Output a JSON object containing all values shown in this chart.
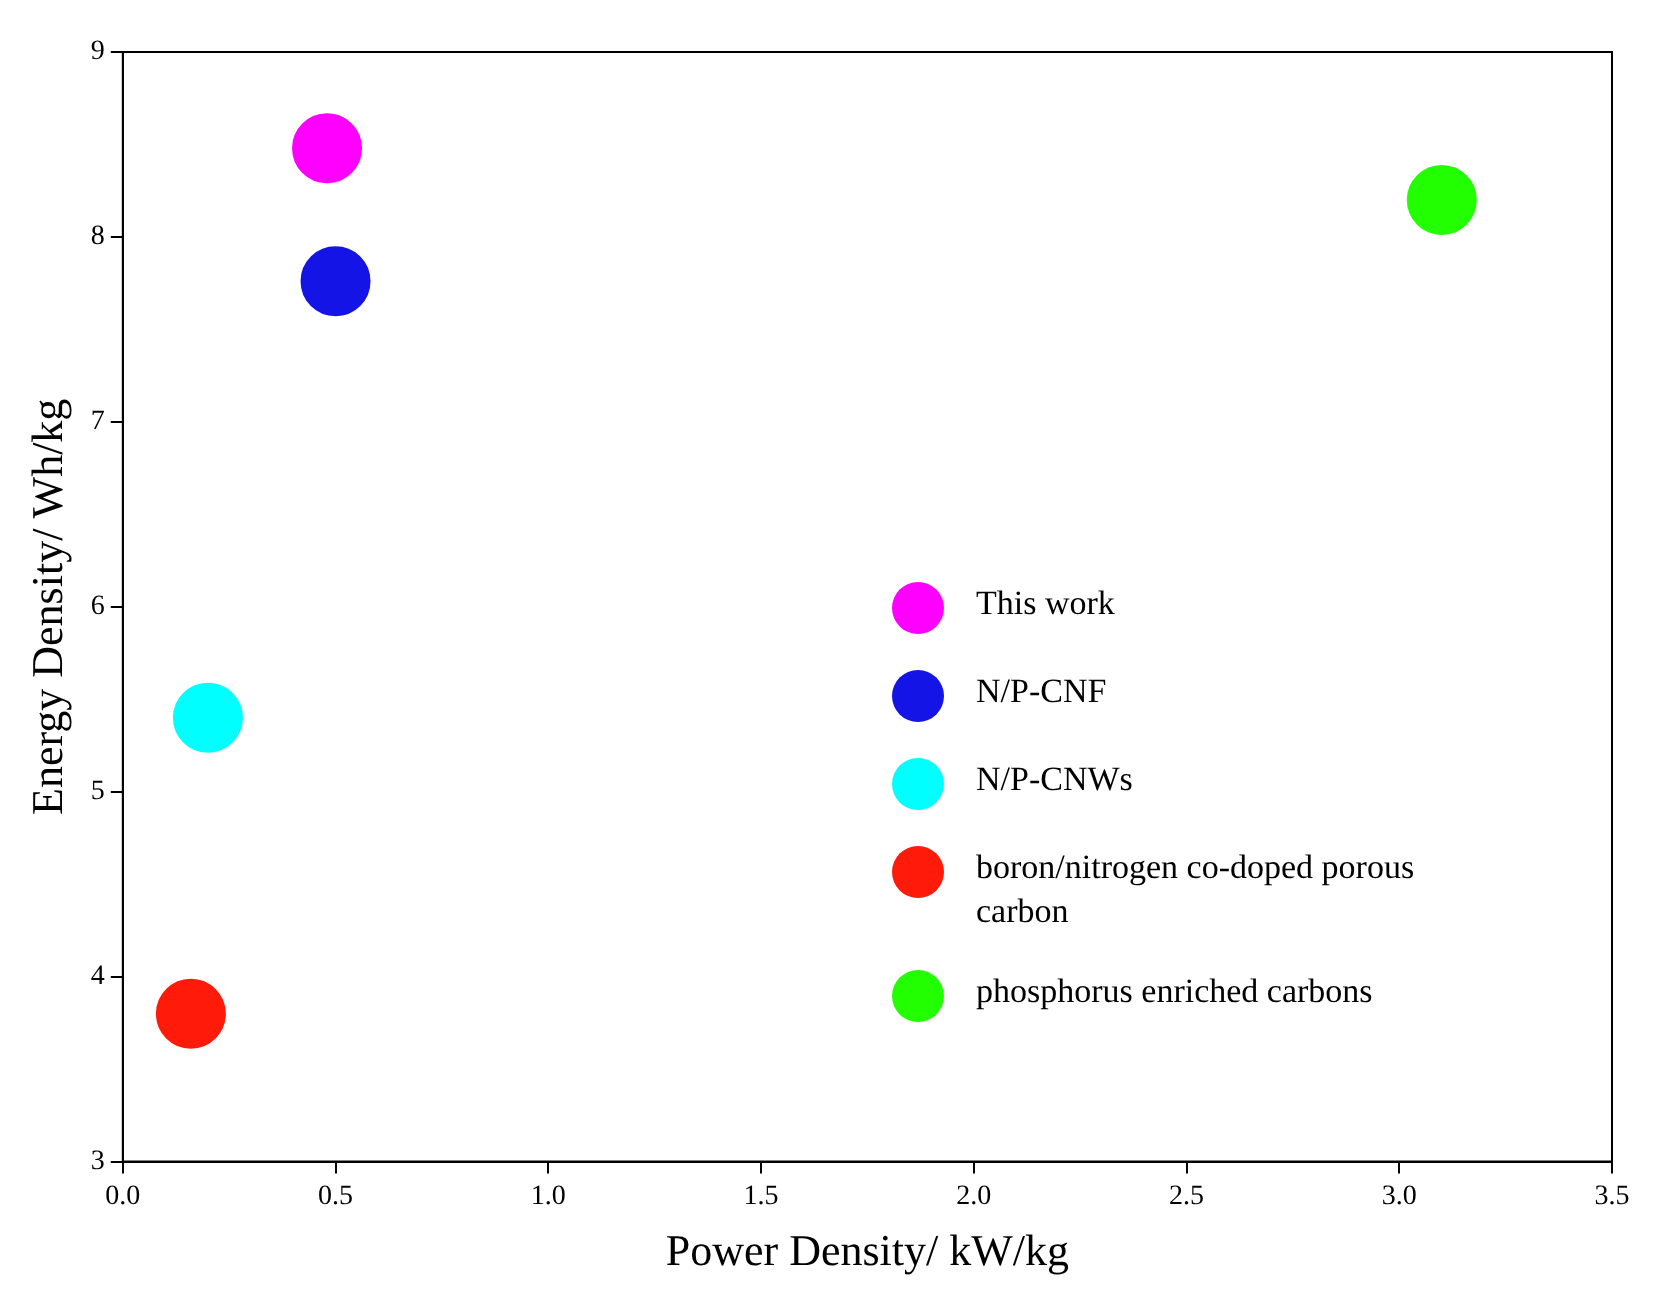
{
  "chart_data": {
    "type": "scatter",
    "xlabel": "Power Density/ kW/kg",
    "ylabel": "Energy Density/ Wh/kg",
    "xlim": [
      0,
      3.5
    ],
    "xticks": [
      {
        "value": 0,
        "label": "0.0"
      },
      {
        "value": 0.5,
        "label": "0.5"
      },
      {
        "value": 1,
        "label": "1.0"
      },
      {
        "value": 1.5,
        "label": "1.5"
      },
      {
        "value": 2,
        "label": "2.0"
      },
      {
        "value": 2.5,
        "label": "2.5"
      },
      {
        "value": 3,
        "label": "3.0"
      },
      {
        "value": 3.5,
        "label": "3.5"
      }
    ],
    "ylim": [
      3,
      9
    ],
    "yticks": [
      3,
      4,
      5,
      6,
      7,
      8,
      9
    ],
    "grid": false,
    "legend": "bottom right",
    "marker": "circle",
    "series": [
      {
        "name": "This work",
        "color": "#ff00ff",
        "x": [
          0.48
        ],
        "values": [
          8.48
        ]
      },
      {
        "name": "N/P-CNF",
        "color": "#1414e6",
        "x": [
          0.5
        ],
        "values": [
          7.76
        ]
      },
      {
        "name": "N/P-CNWs",
        "color": "#00ffff",
        "x": [
          0.2
        ],
        "values": [
          5.4
        ]
      },
      {
        "name": "boron/nitrogen co-doped porous carbon",
        "color": "#ff1a0a",
        "x": [
          0.16
        ],
        "values": [
          3.8
        ]
      },
      {
        "name": "phosphorus enriched carbons",
        "color": "#22ff00",
        "x": [
          3.1
        ],
        "values": [
          8.2
        ]
      }
    ]
  }
}
